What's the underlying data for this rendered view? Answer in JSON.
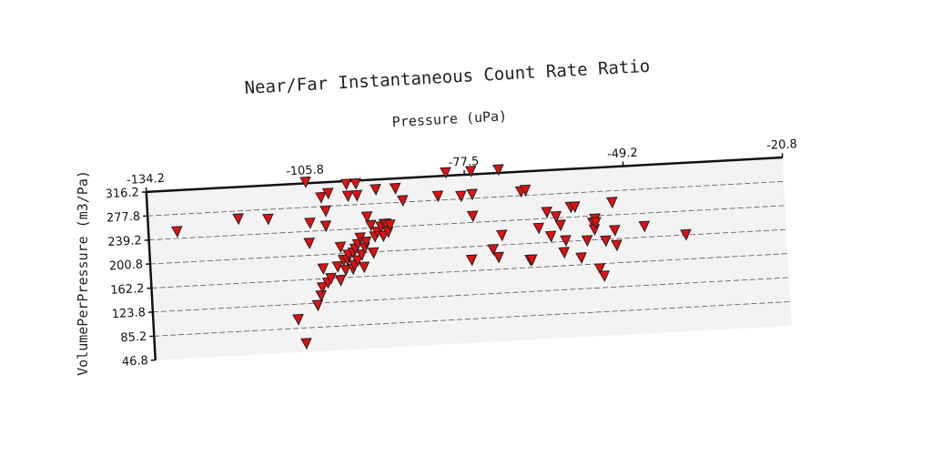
{
  "chart_data": {
    "type": "scatter",
    "title": "Near/Far Instantaneous Count Rate Ratio",
    "xlabel": "Pressure (uPa)",
    "ylabel": "VolumePerPressure (m3/Pa)",
    "x_ticks": [
      "-134.2",
      "-105.8",
      "-77.5",
      "-49.2",
      "-20.8"
    ],
    "y_ticks": [
      "46.8",
      "85.2",
      "123.8",
      "162.2",
      "200.8",
      "239.2",
      "277.8",
      "316.2"
    ],
    "xlim": [
      -134.2,
      -20.8
    ],
    "ylim": [
      46.8,
      316.2
    ],
    "x_axis_position": "top",
    "grid": "horizontal-dashed",
    "marker": "triangle-down",
    "marker_color": "#e01010",
    "background_color": "#f3f3f3",
    "points": [
      [
        -129.1,
        250
      ],
      [
        -118.1,
        265
      ],
      [
        -112.8,
        262
      ],
      [
        -108.4,
        99
      ],
      [
        -107.2,
        60
      ],
      [
        -105.8,
        318
      ],
      [
        -105.4,
        252
      ],
      [
        -105.7,
        220
      ],
      [
        -104.8,
        120
      ],
      [
        -104.1,
        135
      ],
      [
        -103.8,
        148
      ],
      [
        -103.5,
        178
      ],
      [
        -103.2,
        292
      ],
      [
        -102.8,
        155
      ],
      [
        -102.5,
        270
      ],
      [
        -102.2,
        162
      ],
      [
        -102.6,
        246
      ],
      [
        -101.9,
        298
      ],
      [
        -100.9,
        180
      ],
      [
        -100.5,
        158
      ],
      [
        -100.2,
        211
      ],
      [
        -99.8,
        190
      ],
      [
        -99.5,
        174
      ],
      [
        -99.1,
        190
      ],
      [
        -98.9,
        198
      ],
      [
        -98.6,
        311
      ],
      [
        -98.4,
        292
      ],
      [
        -98.2,
        175
      ],
      [
        -98.0,
        201
      ],
      [
        -97.9,
        181
      ],
      [
        -97.6,
        207
      ],
      [
        -97.3,
        188
      ],
      [
        -97.1,
        214
      ],
      [
        -96.9,
        311
      ],
      [
        -96.8,
        292
      ],
      [
        -96.6,
        224
      ],
      [
        -96.5,
        197
      ],
      [
        -96.2,
        177
      ],
      [
        -95.9,
        208
      ],
      [
        -95.6,
        217
      ],
      [
        -95.2,
        257
      ],
      [
        -94.6,
        243
      ],
      [
        -94.4,
        199
      ],
      [
        -94.0,
        225
      ],
      [
        -93.5,
        232
      ],
      [
        -93.4,
        300
      ],
      [
        -92.8,
        240
      ],
      [
        -92.5,
        225
      ],
      [
        -92.2,
        244
      ],
      [
        -91.9,
        244
      ],
      [
        -91.6,
        231
      ],
      [
        -91.2,
        242
      ],
      [
        -89.9,
        300
      ],
      [
        -88.7,
        280
      ],
      [
        -82.4,
        284
      ],
      [
        -80.8,
        321
      ],
      [
        -78.3,
        282
      ],
      [
        -77.0,
        179
      ],
      [
        -76.4,
        249
      ],
      [
        -76.3,
        284
      ],
      [
        -76.3,
        321
      ],
      [
        -73.1,
        194
      ],
      [
        -72.2,
        181
      ],
      [
        -71.4,
        216
      ],
      [
        -71.4,
        321
      ],
      [
        -67.6,
        284
      ],
      [
        -66.8,
        286
      ],
      [
        -66.6,
        174
      ],
      [
        -66.3,
        174
      ],
      [
        -64.8,
        224
      ],
      [
        -63.2,
        249
      ],
      [
        -62.7,
        210
      ],
      [
        -61.6,
        241
      ],
      [
        -60.9,
        227
      ],
      [
        -60.5,
        183
      ],
      [
        -60.1,
        202
      ],
      [
        -58.9,
        255
      ],
      [
        -58.2,
        255
      ],
      [
        -57.5,
        173
      ],
      [
        -56.3,
        200
      ],
      [
        -55.1,
        228
      ],
      [
        -54.9,
        217
      ],
      [
        -54.7,
        234
      ],
      [
        -54.6,
        228
      ],
      [
        -54.3,
        154
      ],
      [
        -53.6,
        142
      ],
      [
        -53.0,
        198
      ],
      [
        -51.5,
        259
      ],
      [
        -51.3,
        214
      ],
      [
        -51.1,
        190
      ],
      [
        -46.0,
        218
      ],
      [
        -38.7,
        201
      ]
    ]
  }
}
